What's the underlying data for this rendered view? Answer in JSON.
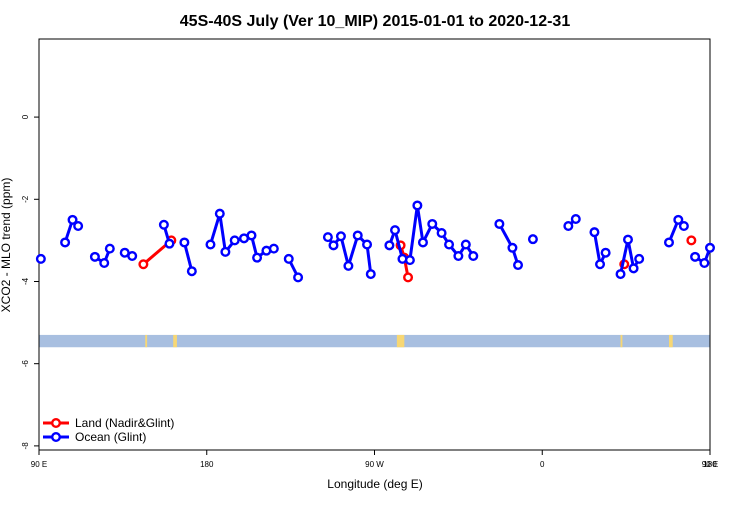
{
  "chart_data": {
    "type": "line",
    "title": "45S-40S July (Ver 10_MIP)   2015-01-01 to 2020-12-31",
    "xlabel": "Longitude (deg E)",
    "ylabel": "XCO2 - MLO trend (ppm)",
    "xlim": [
      90,
      450
    ],
    "ylim": [
      -8.1,
      1.9
    ],
    "x_ticks": [
      {
        "value": 90,
        "label": "90 E"
      },
      {
        "value": 180,
        "label": "180"
      },
      {
        "value": 270,
        "label": "90 W"
      },
      {
        "value": 360,
        "label": "0"
      },
      {
        "value": 450,
        "label": "90 E"
      },
      {
        "value": 540,
        "label": "180"
      }
    ],
    "y_ticks": [
      {
        "value": 0,
        "label": "0"
      },
      {
        "value": -2,
        "label": "-2"
      },
      {
        "value": -4,
        "label": "-4"
      },
      {
        "value": -6,
        "label": "-6"
      },
      {
        "value": -8,
        "label": "-8"
      }
    ],
    "legend_position": "bottom-left",
    "grid": false,
    "band": {
      "ymin": -5.6,
      "ymax": -5.3,
      "ocean_color": "#a8bfe0",
      "land_color": "#f7d774",
      "land_segments": [
        [
          147,
          148
        ],
        [
          162,
          164
        ],
        [
          282,
          286
        ],
        [
          402,
          403
        ],
        [
          428,
          430
        ]
      ]
    },
    "series": [
      {
        "name": "Land (Nadir&Glint)",
        "color": "#ff0000",
        "segments": [
          [
            [
              146,
              -3.58
            ],
            [
              161,
              -3.0
            ]
          ],
          [
            [
              284,
              -3.12
            ],
            [
              286,
              -3.42
            ],
            [
              288,
              -3.9
            ]
          ],
          [
            [
              404,
              -3.58
            ]
          ],
          [
            [
              440,
              -3.0
            ]
          ]
        ]
      },
      {
        "name": "Ocean (Glint)",
        "color": "#0000ff",
        "segments": [
          [
            [
              91,
              -3.45
            ]
          ],
          [
            [
              104,
              -3.05
            ],
            [
              108,
              -2.5
            ],
            [
              111,
              -2.65
            ]
          ],
          [
            [
              120,
              -3.4
            ],
            [
              125,
              -3.55
            ],
            [
              128,
              -3.2
            ]
          ],
          [
            [
              136,
              -3.3
            ],
            [
              140,
              -3.38
            ]
          ],
          [
            [
              157,
              -2.62
            ],
            [
              160,
              -3.08
            ]
          ],
          [
            [
              168,
              -3.05
            ],
            [
              172,
              -3.75
            ]
          ],
          [
            [
              182,
              -3.1
            ],
            [
              187,
              -2.35
            ],
            [
              190,
              -3.28
            ],
            [
              195,
              -3.0
            ],
            [
              200,
              -2.95
            ],
            [
              204,
              -2.88
            ],
            [
              207,
              -3.42
            ],
            [
              212,
              -3.25
            ],
            [
              216,
              -3.2
            ]
          ],
          [
            [
              224,
              -3.45
            ],
            [
              229,
              -3.9
            ]
          ],
          [
            [
              245,
              -2.92
            ],
            [
              248,
              -3.12
            ],
            [
              252,
              -2.9
            ],
            [
              256,
              -3.62
            ],
            [
              261,
              -2.88
            ],
            [
              266,
              -3.1
            ],
            [
              268,
              -3.82
            ]
          ],
          [
            [
              278,
              -3.12
            ],
            [
              281,
              -2.75
            ],
            [
              285,
              -3.45
            ],
            [
              289,
              -3.48
            ],
            [
              293,
              -2.15
            ],
            [
              296,
              -3.05
            ],
            [
              301,
              -2.6
            ],
            [
              306,
              -2.82
            ],
            [
              310,
              -3.1
            ],
            [
              315,
              -3.38
            ],
            [
              319,
              -3.1
            ],
            [
              323,
              -3.38
            ]
          ],
          [
            [
              337,
              -2.6
            ],
            [
              344,
              -3.18
            ],
            [
              347,
              -3.6
            ]
          ],
          [
            [
              355,
              -2.97
            ]
          ],
          [
            [
              374,
              -2.65
            ],
            [
              378,
              -2.48
            ]
          ],
          [
            [
              388,
              -2.8
            ],
            [
              391,
              -3.58
            ],
            [
              394,
              -3.3
            ]
          ],
          [
            [
              402,
              -3.82
            ],
            [
              406,
              -2.98
            ],
            [
              409,
              -3.68
            ],
            [
              412,
              -3.45
            ]
          ],
          [
            [
              428,
              -3.05
            ],
            [
              433,
              -2.5
            ],
            [
              436,
              -2.65
            ]
          ],
          [
            [
              442,
              -3.4
            ],
            [
              447,
              -3.55
            ],
            [
              450,
              -3.18
            ]
          ]
        ]
      }
    ]
  }
}
